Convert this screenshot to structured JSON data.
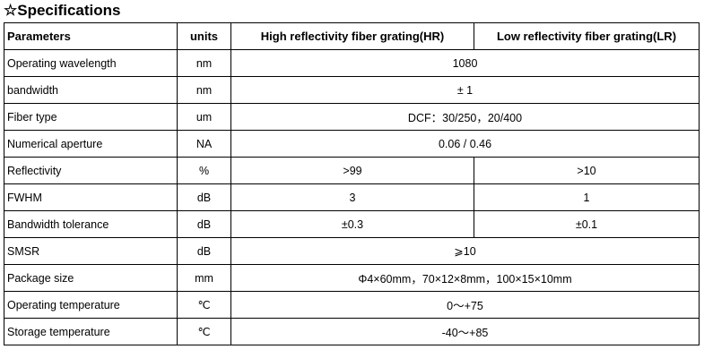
{
  "title": "☆Specifications",
  "table": {
    "header": [
      "Parameters",
      "units",
      "High reflectivity fiber grating(HR)",
      "Low reflectivity fiber grating(LR)"
    ],
    "rows": [
      [
        "Operating wavelength",
        "nm",
        "1080"
      ],
      [
        "bandwidth",
        "nm",
        "± 1"
      ],
      [
        "Fiber type",
        "um",
        "DCF：30/250，20/400"
      ],
      [
        "Numerical aperture",
        "NA",
        "0.06 / 0.46"
      ],
      [
        "Reflectivity",
        "%",
        ">99",
        ">10"
      ],
      [
        "FWHM",
        "dB",
        "3",
        "1"
      ],
      [
        "Bandwidth tolerance",
        "dB",
        "±0.3",
        "±0.1"
      ],
      [
        "SMSR",
        "dB",
        "⩾10"
      ],
      [
        "Package size",
        "mm",
        "Φ4×60mm，70×12×8mm，100×15×10mm"
      ],
      [
        "Operating temperature",
        "℃",
        "0～+75"
      ],
      [
        "Storage temperature",
        "℃",
        "-40～+85"
      ]
    ]
  }
}
